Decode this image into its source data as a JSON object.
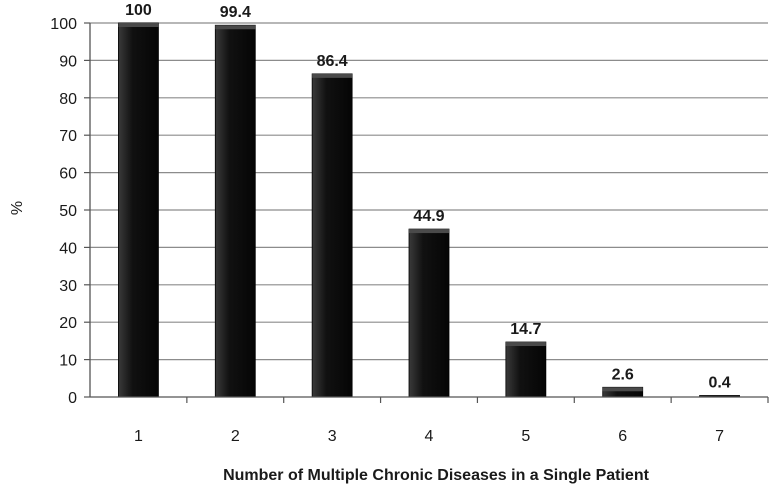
{
  "chart_data": {
    "type": "bar",
    "categories": [
      "1",
      "2",
      "3",
      "4",
      "5",
      "6",
      "7"
    ],
    "values": [
      100,
      99.4,
      86.4,
      44.9,
      14.7,
      2.6,
      0.4
    ],
    "data_labels": [
      "100",
      "99.4",
      "86.4",
      "44.9",
      "14.7",
      "2.6",
      "0.4"
    ],
    "title": "",
    "xlabel": "Number of Multiple Chronic Diseases in a Single Patient",
    "ylabel": "%",
    "ylim": [
      0,
      100
    ],
    "yticks": [
      "0",
      "10",
      "20",
      "30",
      "40",
      "50",
      "60",
      "70",
      "80",
      "90",
      "100"
    ],
    "grid": true,
    "legend": "none",
    "bar_color": "#111111",
    "grid_color": "#8c8c8c"
  }
}
